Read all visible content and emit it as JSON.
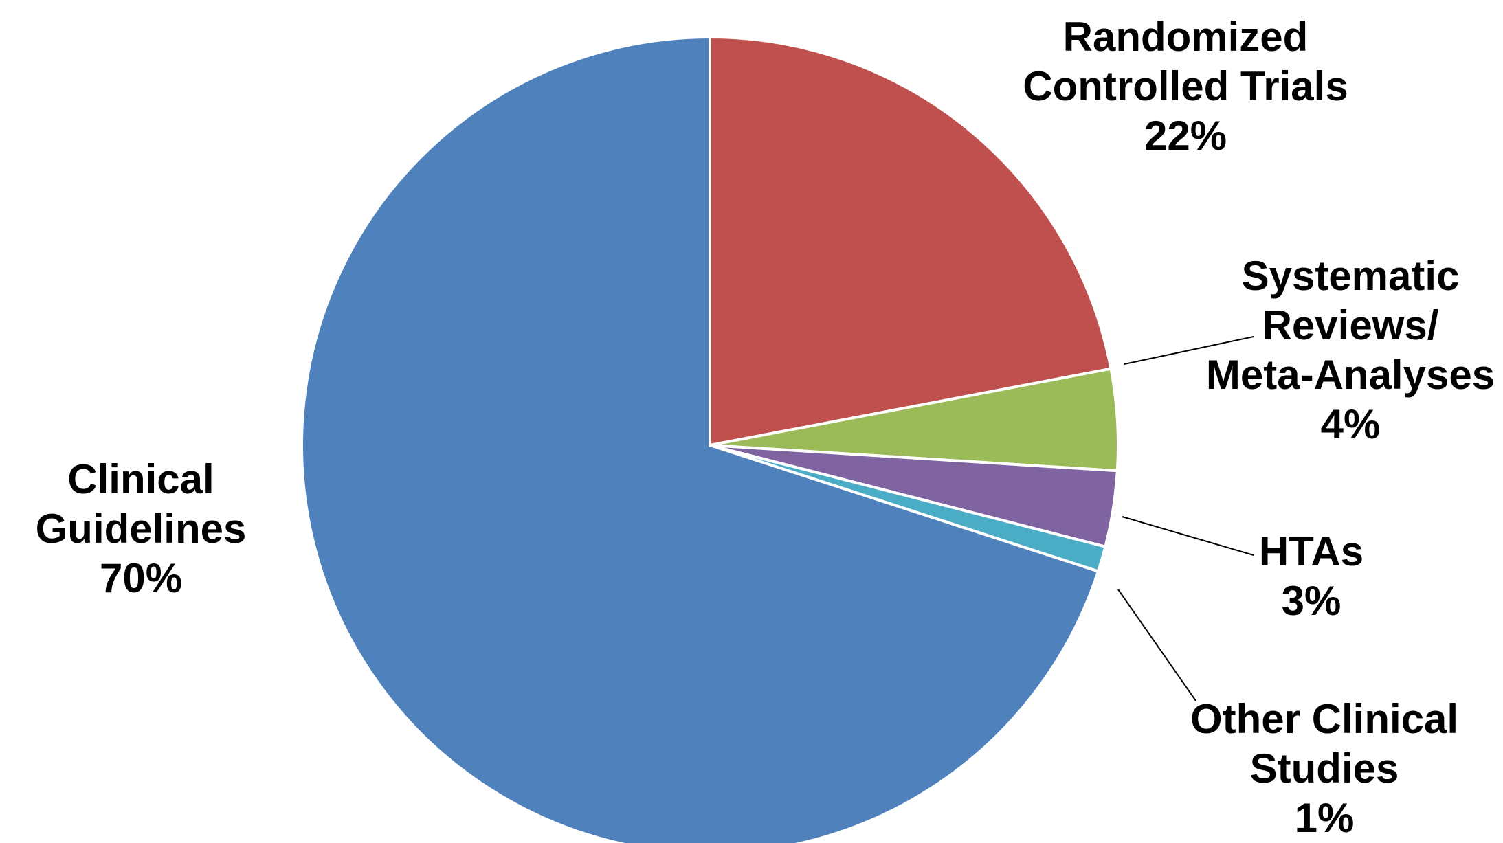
{
  "chart_data": {
    "type": "pie",
    "slices": [
      {
        "label_lines": [
          "Randomized",
          "Controlled Trials"
        ],
        "pct_label": "22%",
        "value": 22,
        "color": "#C0504D"
      },
      {
        "label_lines": [
          "Systematic",
          "Reviews/",
          "Meta-Analyses"
        ],
        "pct_label": "4%",
        "value": 4,
        "color": "#9BBB59"
      },
      {
        "label_lines": [
          "HTAs"
        ],
        "pct_label": "3%",
        "value": 3,
        "color": "#8064A2"
      },
      {
        "label_lines": [
          "Other Clinical",
          "Studies"
        ],
        "pct_label": "1%",
        "value": 1,
        "color": "#4BACC6"
      },
      {
        "label_lines": [
          "Clinical",
          "Guidelines"
        ],
        "pct_label": "70%",
        "value": 70,
        "color": "#4F81BD"
      }
    ],
    "start_angle_deg": 0,
    "direction": "clockwise"
  }
}
